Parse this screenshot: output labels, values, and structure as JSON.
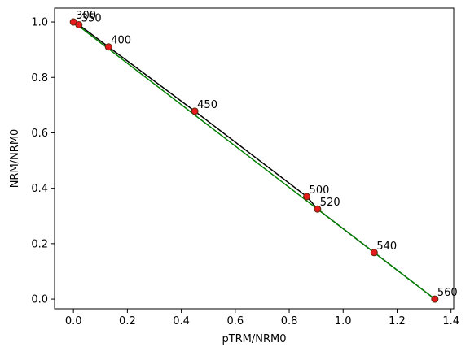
{
  "chart_data": {
    "type": "scatter",
    "xlabel": "pTRM/NRM0",
    "ylabel": "NRM/NRM0",
    "xlim": [
      -0.07,
      1.41
    ],
    "ylim": [
      -0.035,
      1.05
    ],
    "xticks": [
      "0.0",
      "0.2",
      "0.4",
      "0.6",
      "0.8",
      "1.0",
      "1.2",
      "1.4"
    ],
    "yticks": [
      "0.0",
      "0.2",
      "0.4",
      "0.6",
      "0.8",
      "1.0"
    ],
    "grid": false,
    "points": [
      {
        "label": "300",
        "x": 0.0,
        "y": 1.0
      },
      {
        "label": "350",
        "x": 0.02,
        "y": 0.99
      },
      {
        "label": "400",
        "x": 0.13,
        "y": 0.91
      },
      {
        "label": "450",
        "x": 0.45,
        "y": 0.678
      },
      {
        "label": "500",
        "x": 0.865,
        "y": 0.37
      },
      {
        "label": "520",
        "x": 0.905,
        "y": 0.325
      },
      {
        "label": "540",
        "x": 1.115,
        "y": 0.168
      },
      {
        "label": "560",
        "x": 1.34,
        "y": 0.0
      }
    ],
    "fit_line": {
      "x": [
        0.0,
        1.34
      ],
      "y": [
        1.0,
        0.0
      ]
    },
    "colors": {
      "marker_fill": "#e41a1c",
      "marker_edge": "#5a2a0a",
      "data_line": "#000000",
      "fit_line": "#008000"
    }
  }
}
